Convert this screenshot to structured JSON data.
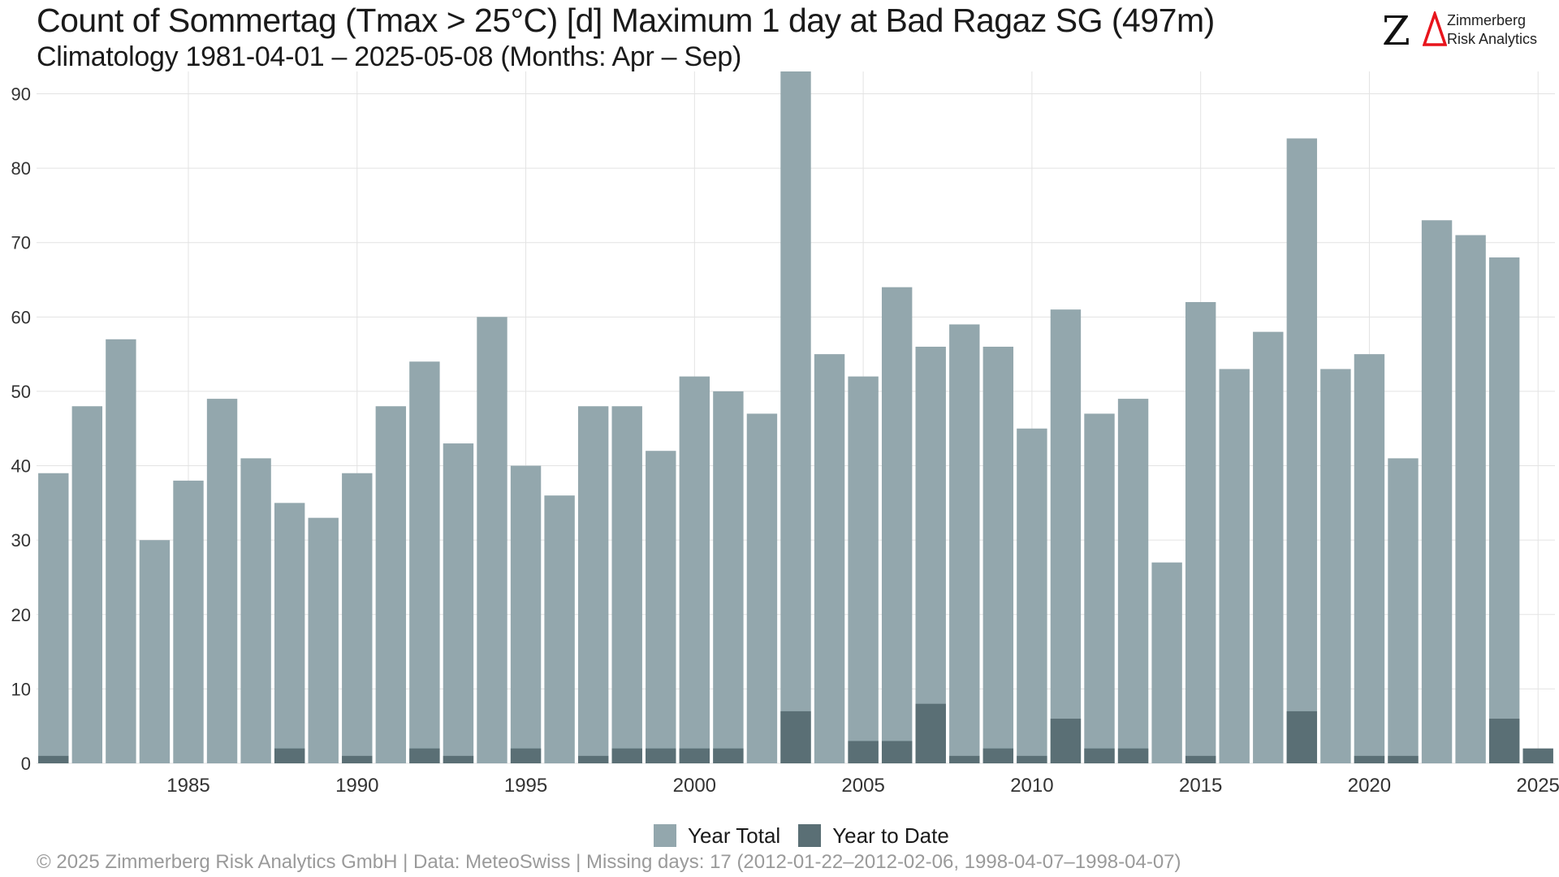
{
  "header": {
    "title": "Count of Sommertag (Tmax > 25°C) [d] Maximum 1 day at Bad Ragaz  SG (497m)",
    "subtitle": "Climatology 1981-04-01 – 2025-05-08 (Months: Apr – Sep)"
  },
  "logo": {
    "mark": "Z",
    "line1": "Zimmerberg",
    "line2": "Risk Analytics",
    "accent_color": "#e8141c"
  },
  "footer": {
    "text": "©  2025 Zimmerberg Risk Analytics GmbH | Data: MeteoSwiss | Missing days: 17 (2012-01-22–2012-02-06, 1998-04-07–1998-04-07)"
  },
  "chart_data": {
    "type": "bar",
    "grid": true,
    "legend_position": "bottom",
    "ylim": [
      0,
      93
    ],
    "yticks": [
      0,
      10,
      20,
      30,
      40,
      50,
      60,
      70,
      80,
      90
    ],
    "xticks": [
      1985,
      1990,
      1995,
      2000,
      2005,
      2010,
      2015,
      2020,
      2025
    ],
    "categories": [
      1981,
      1982,
      1983,
      1984,
      1985,
      1986,
      1987,
      1988,
      1989,
      1990,
      1991,
      1992,
      1993,
      1994,
      1995,
      1996,
      1997,
      1998,
      1999,
      2000,
      2001,
      2002,
      2003,
      2004,
      2005,
      2006,
      2007,
      2008,
      2009,
      2010,
      2011,
      2012,
      2013,
      2014,
      2015,
      2016,
      2017,
      2018,
      2019,
      2020,
      2021,
      2022,
      2023,
      2024,
      2025
    ],
    "series": [
      {
        "name": "Year Total",
        "color": "#93a7ad",
        "values": [
          39,
          48,
          57,
          30,
          38,
          49,
          41,
          35,
          33,
          39,
          48,
          54,
          43,
          60,
          40,
          36,
          48,
          48,
          42,
          52,
          50,
          47,
          93,
          55,
          52,
          64,
          56,
          59,
          56,
          45,
          61,
          47,
          49,
          27,
          62,
          53,
          58,
          84,
          53,
          55,
          41,
          73,
          71,
          68,
          null
        ]
      },
      {
        "name": "Year to Date",
        "color": "#5a6f75",
        "values": [
          1,
          0,
          0,
          0,
          0,
          0,
          0,
          2,
          0,
          1,
          0,
          2,
          1,
          0,
          2,
          0,
          1,
          2,
          2,
          2,
          2,
          0,
          7,
          0,
          3,
          3,
          8,
          1,
          2,
          1,
          6,
          2,
          2,
          0,
          1,
          0,
          0,
          7,
          0,
          1,
          1,
          0,
          0,
          6,
          2
        ]
      }
    ]
  }
}
